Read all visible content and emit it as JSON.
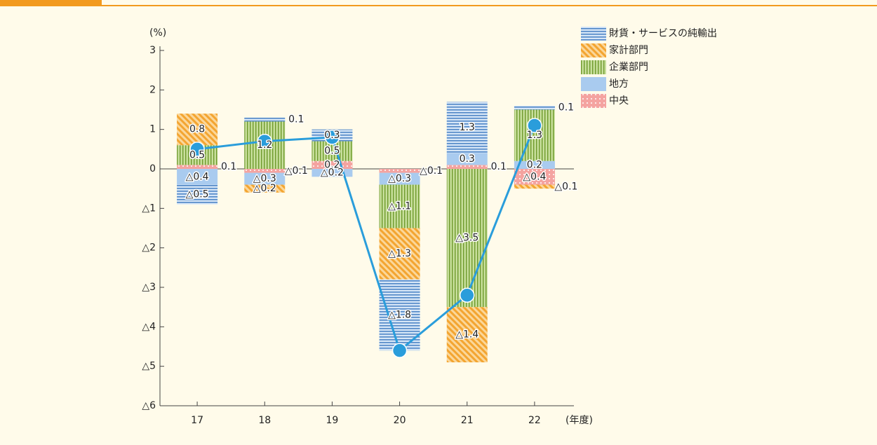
{
  "chart_data": {
    "type": "stacked_bar_line",
    "y_label": "(%)",
    "x_label": "(年度)",
    "categories": [
      "17",
      "18",
      "19",
      "20",
      "21",
      "22"
    ],
    "ylim": [
      -6,
      3
    ],
    "yticks": [
      3,
      2,
      1,
      0,
      {
        "value": -1,
        "label": "△1"
      },
      {
        "value": -2,
        "label": "△2"
      },
      {
        "value": -3,
        "label": "△3"
      },
      {
        "value": -4,
        "label": "△4"
      },
      {
        "value": -5,
        "label": "△5"
      },
      {
        "value": -6,
        "label": "△6"
      }
    ],
    "grid": false,
    "legend": "top-right",
    "series": [
      {
        "name": "財貨・サービスの純輸出",
        "color": "#4f86c6",
        "pattern": "hlines",
        "values": [
          -0.5,
          0.1,
          0.3,
          -1.8,
          1.3,
          0.1
        ],
        "value_labels": [
          "△0.5",
          "0.1",
          "0.3",
          "△1.8",
          "1.3",
          "0.1"
        ]
      },
      {
        "name": "家計部門",
        "color": "#f3a531",
        "pattern": "diagonal",
        "values": [
          0.8,
          -0.2,
          null,
          -1.3,
          -1.4,
          -0.1
        ],
        "value_labels": [
          "0.8",
          "△0.2",
          null,
          "△1.3",
          "△1.4",
          "△0.1"
        ]
      },
      {
        "name": "企業部門",
        "color": "#86b33e",
        "pattern": "vlines",
        "values": [
          0.5,
          1.2,
          0.5,
          -1.1,
          -3.5,
          1.3
        ],
        "value_labels": [
          "0.5",
          "1.2",
          "0.5",
          "△1.1",
          "△3.5",
          "1.3"
        ]
      },
      {
        "name": "地方",
        "color": "#a9cbef",
        "pattern": "solid",
        "values": [
          -0.4,
          -0.3,
          -0.2,
          -0.3,
          0.3,
          0.2
        ],
        "value_labels": [
          "△0.4",
          "△0.3",
          "△0.2",
          "△0.3",
          "0.3",
          "0.2"
        ]
      },
      {
        "name": "中央",
        "color": "#f4a3a0",
        "pattern": "dots",
        "values": [
          0.1,
          -0.1,
          0.2,
          -0.1,
          0.1,
          -0.4
        ],
        "value_labels": [
          "0.1",
          "△0.1",
          "0.2",
          "△0.1",
          "0.1",
          "△0.4"
        ]
      }
    ],
    "line": {
      "color": "#2a9ddb",
      "values": [
        0.5,
        0.7,
        0.8,
        -4.6,
        -3.2,
        1.1
      ]
    }
  }
}
